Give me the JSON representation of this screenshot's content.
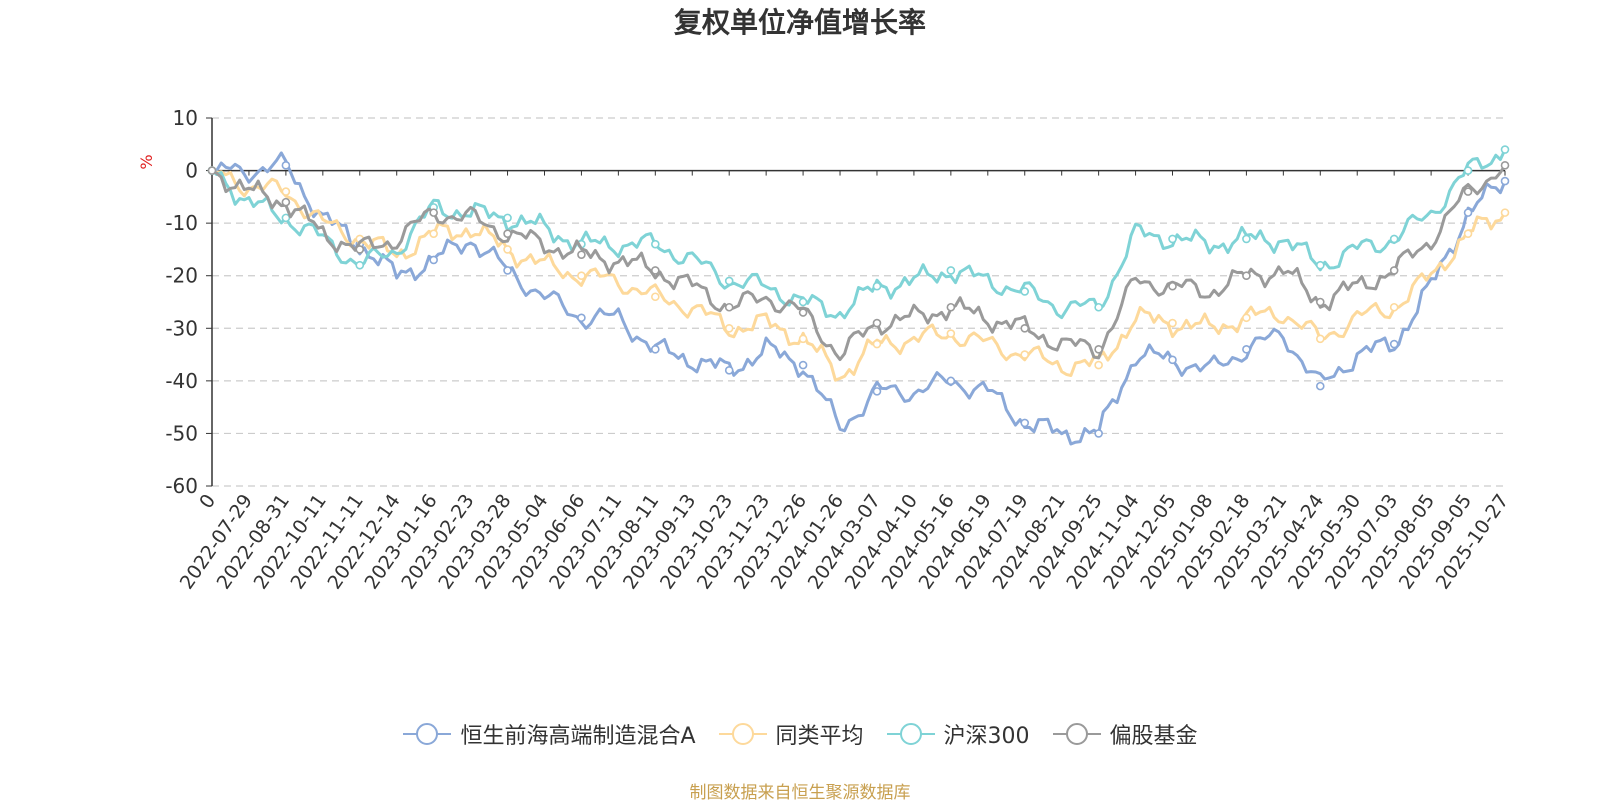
{
  "chart_data": {
    "type": "line",
    "title": "复权单位净值增长率",
    "ylabel": "%",
    "xlabel": "",
    "ylim": [
      -60,
      10
    ],
    "yticks": [
      10,
      0,
      -10,
      -20,
      -30,
      -40,
      -50,
      -60
    ],
    "grid": true,
    "legend_position": "bottom",
    "x_ticks": [
      "0",
      "2022-07-29",
      "2022-08-31",
      "2022-10-11",
      "2022-11-11",
      "2022-12-14",
      "2023-01-16",
      "2023-02-23",
      "2023-03-28",
      "2023-05-04",
      "2023-06-06",
      "2023-07-11",
      "2023-08-11",
      "2023-09-13",
      "2023-10-23",
      "2023-11-23",
      "2023-12-26",
      "2024-01-26",
      "2024-03-07",
      "2024-04-10",
      "2024-05-16",
      "2024-06-19",
      "2024-07-19",
      "2024-08-21",
      "2024-09-25",
      "2024-11-04",
      "2024-12-05",
      "2025-01-08",
      "2025-02-18",
      "2025-03-21",
      "2025-04-24",
      "2025-05-30",
      "2025-07-03",
      "2025-08-05",
      "2025-09-05",
      "2025-10-27"
    ],
    "series": [
      {
        "name": "恒生前海高端制造混合A",
        "color": "#8aa8d8",
        "values": [
          0,
          0,
          1,
          -9,
          -14,
          -20,
          -17,
          -13,
          -19,
          -24,
          -28,
          -28,
          -34,
          -36,
          -38,
          -34,
          -37,
          -49,
          -42,
          -42,
          -40,
          -42,
          -48,
          -50,
          -50,
          -35,
          -36,
          -38,
          -34,
          -31,
          -41,
          -35,
          -33,
          -22,
          -8,
          -2
        ]
      },
      {
        "name": "同类平均",
        "color": "#fdd99b",
        "values": [
          0,
          -3,
          -4,
          -10,
          -13,
          -16,
          -12,
          -11,
          -15,
          -18,
          -20,
          -21,
          -24,
          -26,
          -30,
          -29,
          -32,
          -39,
          -33,
          -32,
          -31,
          -33,
          -35,
          -37,
          -37,
          -28,
          -29,
          -30,
          -28,
          -27,
          -32,
          -28,
          -26,
          -20,
          -12,
          -8
        ]
      },
      {
        "name": "沪深300",
        "color": "#7fd3d6",
        "values": [
          0,
          -6,
          -9,
          -13,
          -18,
          -15,
          -7,
          -8,
          -9,
          -11,
          -14,
          -14,
          -14,
          -17,
          -21,
          -22,
          -25,
          -27,
          -22,
          -21,
          -19,
          -21,
          -23,
          -26,
          -26,
          -12,
          -13,
          -14,
          -13,
          -13,
          -18,
          -15,
          -13,
          -8,
          0,
          4
        ]
      },
      {
        "name": "偏股基金",
        "color": "#9a9a9a",
        "values": [
          0,
          -4,
          -6,
          -12,
          -15,
          -13,
          -8,
          -9,
          -12,
          -14,
          -16,
          -17,
          -19,
          -22,
          -26,
          -24,
          -27,
          -35,
          -29,
          -28,
          -26,
          -28,
          -30,
          -33,
          -34,
          -21,
          -22,
          -23,
          -20,
          -19,
          -25,
          -22,
          -19,
          -13,
          -4,
          1
        ]
      }
    ]
  },
  "source_text": "制图数据来自恒生聚源数据库"
}
